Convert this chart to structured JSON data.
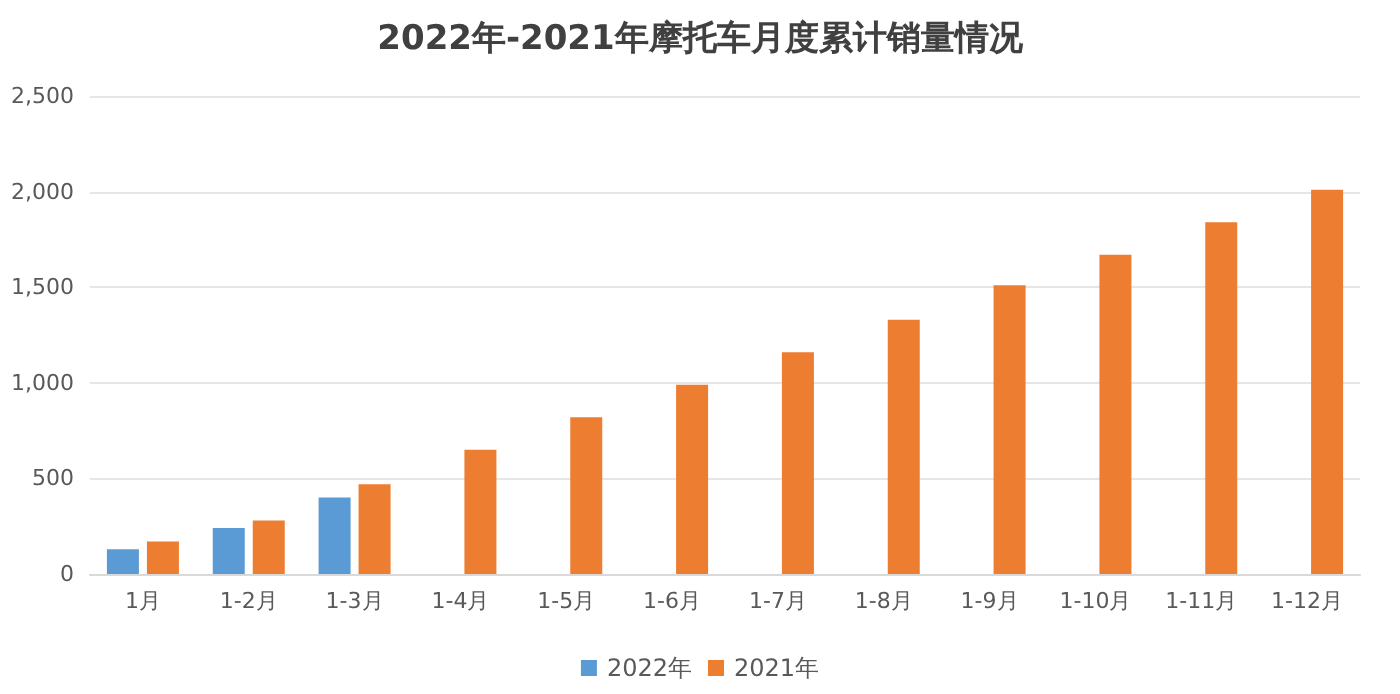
{
  "chart_data": {
    "type": "bar",
    "title": "2022年-2021年摩托车月度累计销量情况",
    "categories": [
      "1月",
      "1-2月",
      "1-3月",
      "1-4月",
      "1-5月",
      "1-6月",
      "1-7月",
      "1-8月",
      "1-9月",
      "1-10月",
      "1-11月",
      "1-12月"
    ],
    "series": [
      {
        "name": "2022年",
        "color": "#5b9bd5",
        "values": [
          130,
          240,
          400,
          null,
          null,
          null,
          null,
          null,
          null,
          null,
          null,
          null
        ]
      },
      {
        "name": "2021年",
        "color": "#ed7d31",
        "values": [
          170,
          280,
          470,
          650,
          820,
          990,
          1160,
          1330,
          1510,
          1670,
          1840,
          2010
        ]
      }
    ],
    "ylim": [
      0,
      2500
    ],
    "yticks": [
      {
        "value": 0,
        "label": "0"
      },
      {
        "value": 500,
        "label": "500"
      },
      {
        "value": 1000,
        "label": "1,000"
      },
      {
        "value": 1500,
        "label": "1,500"
      },
      {
        "value": 2000,
        "label": "2,000"
      },
      {
        "value": 2500,
        "label": "2,500"
      }
    ],
    "grid": "y",
    "legend": "bottom"
  }
}
